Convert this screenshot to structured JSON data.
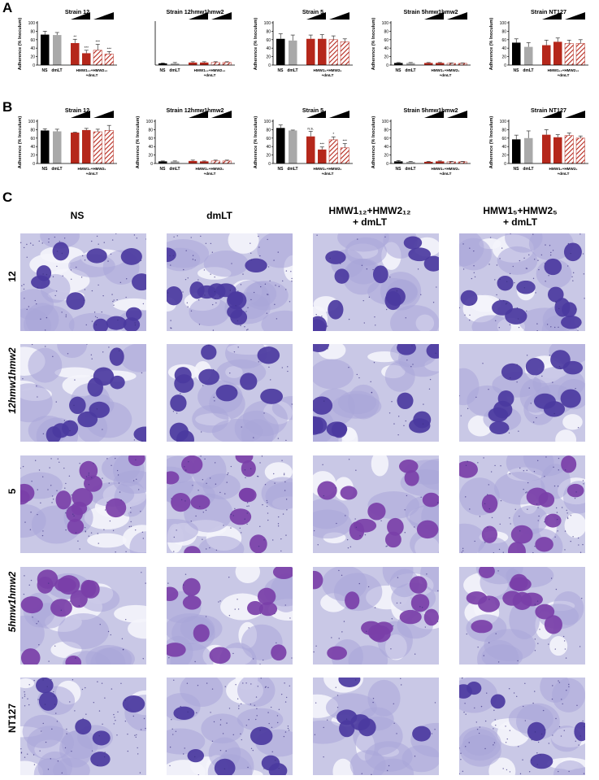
{
  "panels": {
    "A": "A",
    "B": "B",
    "C": "C"
  },
  "hatch_color": "#b5271b",
  "colors": {
    "ns": "#000000",
    "dmlt": "#a9a9a9",
    "red": "#b5271b"
  },
  "chart_data": [
    {
      "id": "A1",
      "type": "bar",
      "title": "Strain 12",
      "ylabel": "Adherence (% Inoculum)",
      "ylim": [
        0,
        100
      ],
      "yticks": [
        "0",
        "20",
        "40",
        "60",
        "80",
        "100"
      ],
      "categories": [
        "NS",
        "dmLT",
        "HMW1₁₂+HMW2₁₂\n+dmLT"
      ],
      "bars": [
        {
          "v": 72,
          "e": 8,
          "c": "ns"
        },
        {
          "v": 71,
          "e": 6,
          "c": "dmlt"
        },
        {
          "v": 52,
          "e": 9,
          "c": "red",
          "sig": "**"
        },
        {
          "v": 28,
          "e": 7,
          "c": "red",
          "sig": "***"
        },
        {
          "v": 35,
          "e": 14,
          "c": "hatch",
          "sig": "***"
        },
        {
          "v": 26,
          "e": 6,
          "c": "hatch",
          "sig": "***"
        }
      ],
      "wedges": 2
    },
    {
      "id": "A2",
      "type": "bar",
      "title": "Strain 12hmw1hmw2",
      "ylabel": "",
      "ylim": [
        0,
        100
      ],
      "yticks": [],
      "categories": [
        "NS",
        "dmLT",
        "HMW1₁₂+HMW2₁₂\n+dmLT"
      ],
      "bars": [
        {
          "v": 4,
          "e": 1,
          "c": "ns"
        },
        {
          "v": 4,
          "e": 2,
          "c": "dmlt"
        },
        {
          "v": 6,
          "e": 2,
          "c": "red"
        },
        {
          "v": 6,
          "e": 2,
          "c": "red"
        },
        {
          "v": 6,
          "e": 2,
          "c": "hatch"
        },
        {
          "v": 6,
          "e": 2,
          "c": "hatch"
        }
      ],
      "wedges": 2
    },
    {
      "id": "A3",
      "type": "bar",
      "title": "Strain 5",
      "ylabel": "Adherence (% Inoculum)",
      "ylim": [
        0,
        100
      ],
      "yticks": [
        "0",
        "20",
        "40",
        "60",
        "80",
        "100"
      ],
      "categories": [
        "NS",
        "dmLT",
        "HMW1₅+HMW2₅\n+dmLT"
      ],
      "bars": [
        {
          "v": 62,
          "e": 12,
          "c": "ns"
        },
        {
          "v": 58,
          "e": 13,
          "c": "dmlt"
        },
        {
          "v": 62,
          "e": 9,
          "c": "red"
        },
        {
          "v": 62,
          "e": 10,
          "c": "red"
        },
        {
          "v": 60,
          "e": 9,
          "c": "hatch"
        },
        {
          "v": 55,
          "e": 7,
          "c": "hatch"
        }
      ],
      "wedges": 2
    },
    {
      "id": "A4",
      "type": "bar",
      "title": "Strain 5hmw1hmw2",
      "ylabel": "Adherence (% Inoculum)",
      "ylim": [
        0,
        100
      ],
      "yticks": [
        "0",
        "20",
        "40",
        "60",
        "80",
        "100"
      ],
      "categories": [
        "NS",
        "dmLT",
        "HMW1₅+HMW2₅\n+dmLT"
      ],
      "bars": [
        {
          "v": 5,
          "e": 1,
          "c": "ns"
        },
        {
          "v": 5,
          "e": 1,
          "c": "dmlt"
        },
        {
          "v": 5,
          "e": 1,
          "c": "red"
        },
        {
          "v": 5,
          "e": 1,
          "c": "red"
        },
        {
          "v": 4,
          "e": 1,
          "c": "hatch"
        },
        {
          "v": 4,
          "e": 1,
          "c": "hatch"
        }
      ],
      "wedges": 2
    },
    {
      "id": "A5",
      "type": "bar",
      "title": "Strain NT127",
      "ylabel": "Adherence (% Inoculum)",
      "ylim": [
        0,
        100
      ],
      "yticks": [
        "0",
        "20",
        "40",
        "60",
        "80",
        "100"
      ],
      "categories": [
        "NS",
        "dmLT",
        "HMW1₁₂+HMW2₁₂\n+dmLT"
      ],
      "bars": [
        {
          "v": 53,
          "e": 9,
          "c": "ns"
        },
        {
          "v": 43,
          "e": 10,
          "c": "dmlt"
        },
        {
          "v": 47,
          "e": 12,
          "c": "red"
        },
        {
          "v": 55,
          "e": 9,
          "c": "red"
        },
        {
          "v": 51,
          "e": 8,
          "c": "hatch"
        },
        {
          "v": 51,
          "e": 9,
          "c": "hatch"
        }
      ],
      "wedges": 2
    },
    {
      "id": "B1",
      "type": "bar",
      "title": "Strain 12",
      "ylabel": "Adherence (% Inoculum)",
      "ylim": [
        0,
        100
      ],
      "yticks": [
        "0",
        "20",
        "40",
        "60",
        "80",
        "100"
      ],
      "categories": [
        "NS",
        "dmLT",
        "HMW1₅+HMW2₅\n+dmLT"
      ],
      "bars": [
        {
          "v": 78,
          "e": 4,
          "c": "ns"
        },
        {
          "v": 76,
          "e": 5,
          "c": "dmlt"
        },
        {
          "v": 73,
          "e": 1,
          "c": "red"
        },
        {
          "v": 79,
          "e": 4,
          "c": "red"
        },
        {
          "v": 75,
          "e": 6,
          "c": "hatch"
        },
        {
          "v": 78,
          "e": 12,
          "c": "hatch"
        }
      ],
      "wedges": 2
    },
    {
      "id": "B2",
      "type": "bar",
      "title": "Strain 12hmw1hmw2",
      "ylabel": "Adherence (% Inoculum)",
      "ylim": [
        0,
        100
      ],
      "yticks": [
        "0",
        "20",
        "40",
        "60",
        "80",
        "100"
      ],
      "categories": [
        "NS",
        "dmLT",
        "HMW1₅+HMW2₅\n+dmLT"
      ],
      "bars": [
        {
          "v": 5,
          "e": 1,
          "c": "ns"
        },
        {
          "v": 5,
          "e": 1,
          "c": "dmlt"
        },
        {
          "v": 6,
          "e": 2,
          "c": "red"
        },
        {
          "v": 5,
          "e": 1,
          "c": "red"
        },
        {
          "v": 6,
          "e": 2,
          "c": "hatch"
        },
        {
          "v": 6,
          "e": 2,
          "c": "hatch"
        }
      ],
      "wedges": 2
    },
    {
      "id": "B3",
      "type": "bar",
      "title": "Strain 5",
      "ylabel": "Adherence (% Inoculum)",
      "ylim": [
        0,
        100
      ],
      "yticks": [
        "0",
        "20",
        "40",
        "60",
        "80",
        "100"
      ],
      "categories": [
        "NS",
        "dmLT",
        "HMW1₅+HMW2₅\n+dmLT"
      ],
      "bars": [
        {
          "v": 84,
          "e": 7,
          "c": "ns"
        },
        {
          "v": 78,
          "e": 1,
          "c": "dmlt"
        },
        {
          "v": 64,
          "e": 12,
          "c": "red",
          "sig": "n.s."
        },
        {
          "v": 33,
          "e": 6,
          "c": "red",
          "sig": "***"
        },
        {
          "v": 56,
          "e": 7,
          "c": "hatch",
          "sig": "*"
        },
        {
          "v": 37,
          "e": 10,
          "c": "hatch",
          "sig": "***"
        }
      ],
      "wedges": 2
    },
    {
      "id": "B4",
      "type": "bar",
      "title": "Strain 5hmw1hmw2",
      "ylabel": "Adherence (% Inoculum)",
      "ylim": [
        0,
        100
      ],
      "yticks": [
        "0",
        "20",
        "40",
        "60",
        "80",
        "100"
      ],
      "categories": [
        "NS",
        "dmLT",
        "HMW1₅+HMW2₅\n+dmLT"
      ],
      "bars": [
        {
          "v": 5,
          "e": 2,
          "c": "ns"
        },
        {
          "v": 4,
          "e": 1,
          "c": "dmlt"
        },
        {
          "v": 4,
          "e": 1,
          "c": "red"
        },
        {
          "v": 5,
          "e": 1,
          "c": "red"
        },
        {
          "v": 4,
          "e": 1,
          "c": "hatch"
        },
        {
          "v": 4,
          "e": 1,
          "c": "hatch"
        }
      ],
      "wedges": 2
    },
    {
      "id": "B5",
      "type": "bar",
      "title": "Strain NT127",
      "ylabel": "Adherence (% Inoculum)",
      "ylim": [
        0,
        100
      ],
      "yticks": [
        "0",
        "20",
        "40",
        "60",
        "80",
        "100"
      ],
      "categories": [
        "NS",
        "dmLT",
        "HMW1₅+HMW2₅\n+dmLT"
      ],
      "bars": [
        {
          "v": 57,
          "e": 10,
          "c": "ns"
        },
        {
          "v": 60,
          "e": 17,
          "c": "dmlt"
        },
        {
          "v": 68,
          "e": 12,
          "c": "red"
        },
        {
          "v": 62,
          "e": 6,
          "c": "red"
        },
        {
          "v": 66,
          "e": 6,
          "c": "hatch"
        },
        {
          "v": 60,
          "e": 5,
          "c": "hatch"
        }
      ],
      "wedges": 2
    }
  ],
  "micrographs": {
    "columns": [
      "NS",
      "dmLT",
      "HMW1₁₂+HMW2₁₂\n+ dmLT",
      "HMW1₅+HMW2₅\n+ dmLT"
    ],
    "rows": [
      "12",
      "12hmw1hmw2",
      "5",
      "5hmw1hmw2",
      "NT127"
    ]
  }
}
